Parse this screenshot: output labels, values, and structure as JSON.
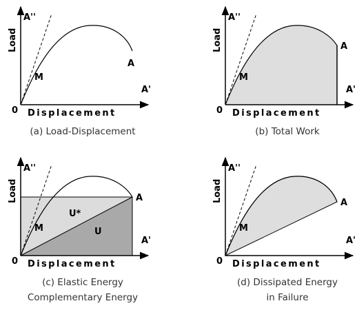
{
  "panels": [
    {
      "y_end": "A''",
      "knee": "M",
      "end_point": "A",
      "x_end": "A'",
      "origin": "0",
      "y_label": "Load",
      "x_label": "Displacement",
      "caption": [
        "(a) Load-Displacement"
      ]
    },
    {
      "y_end": "A''",
      "knee": "M",
      "end_point": "A",
      "x_end": "A'",
      "origin": "0",
      "y_label": "Load",
      "x_label": "Displacement",
      "caption": [
        "(b) Total Work"
      ]
    },
    {
      "y_end": "A''",
      "knee": "M",
      "end_point": "A",
      "x_end": "A'",
      "origin": "0",
      "y_label": "Load",
      "x_label": "Displacement",
      "u_star": "U*",
      "u": "U",
      "caption": [
        "(c) Elastic Energy",
        "Complementary Energy"
      ]
    },
    {
      "y_end": "A''",
      "knee": "M",
      "end_point": "A",
      "x_end": "A'",
      "origin": "0",
      "y_label": "Load",
      "x_label": "Displacement",
      "caption": [
        "(d) Dissipated Energy",
        "in Failure"
      ]
    }
  ]
}
